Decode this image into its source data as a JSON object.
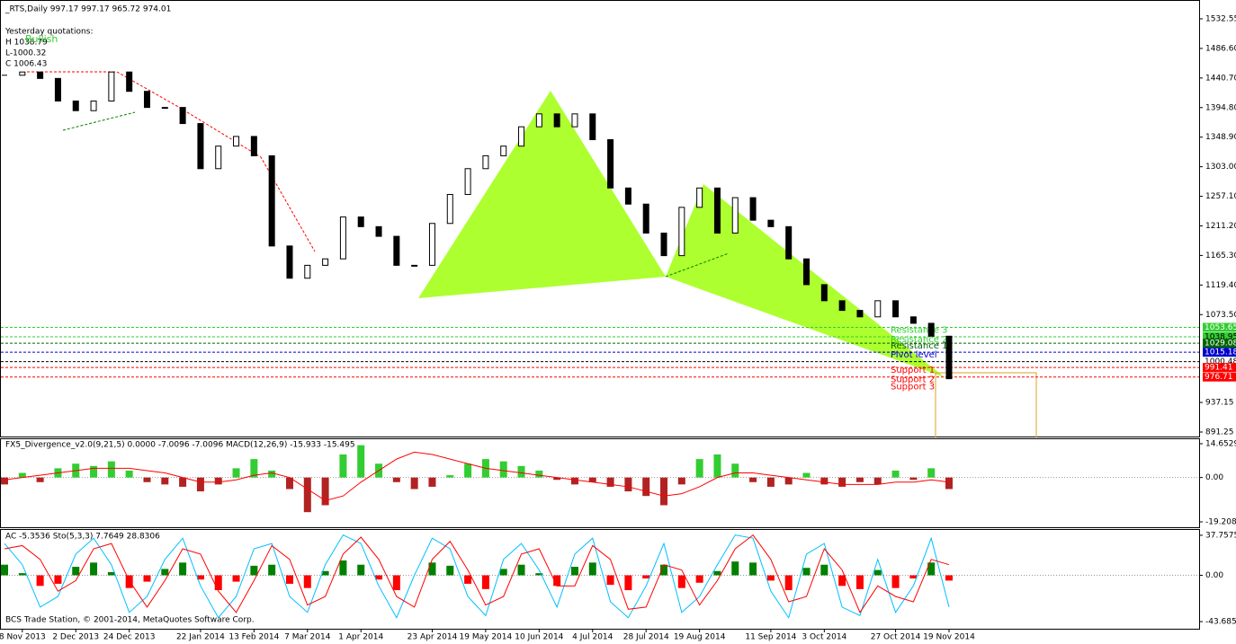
{
  "header": {
    "symbol": "_RTS,Daily  997.17 997.17 965.72 974.01",
    "lines": [
      "Yesterday quotations:",
      "H 1038.79",
      "L-1000.32",
      "C 1006.43"
    ],
    "signal": "Bullish"
  },
  "footer": "BCS Trade Station, © 2001-2014, MetaQuotes Software Corp.",
  "chart_data": [
    {
      "type": "candlestick",
      "up_color": "#ffffff",
      "down_color": "#000000",
      "categories": [
        null,
        "8 Nov 2013",
        null,
        null,
        "2 Dec 2013",
        null,
        null,
        "24 Dec 2013",
        null,
        null,
        null,
        "22 Jan 2014",
        null,
        null,
        "13 Feb 2014",
        null,
        null,
        "7 Mar 2014",
        null,
        null,
        "1 Apr 2014",
        null,
        null,
        null,
        "23 Apr 2014",
        null,
        null,
        "19 May 2014",
        null,
        null,
        "10 Jun 2014",
        null,
        null,
        "4 Jul 2014",
        null,
        null,
        "28 Jul 2014",
        null,
        null,
        "19 Aug 2014",
        null,
        null,
        null,
        "11 Sep 2014",
        null,
        null,
        "3 Oct 2014",
        null,
        null,
        null,
        "27 Oct 2014",
        null,
        null,
        "19 Nov 2014"
      ],
      "values": [
        1445,
        1450,
        1440,
        1405,
        1390,
        1405,
        1450,
        1420,
        1395,
        1395,
        1370,
        1300,
        1335,
        1350,
        1320,
        1180,
        1130,
        1150,
        1160,
        1225,
        1210,
        1195,
        1150,
        1150,
        1215,
        1260,
        1300,
        1320,
        1335,
        1365,
        1385,
        1365,
        1385,
        1345,
        1270,
        1245,
        1200,
        1165,
        1240,
        1270,
        1200,
        1255,
        1220,
        1210,
        1160,
        1120,
        1095,
        1080,
        1070,
        1095,
        1070,
        1060,
        1040,
        974.01
      ],
      "ylim": [
        884.29,
        1560.37
      ],
      "yticks": [
        1532.55,
        {
          "value": 1486.6,
          "label": "1486.60"
        },
        {
          "value": 1440.7,
          "label": "1440.70"
        },
        {
          "value": 1394.8,
          "label": "1394.80"
        },
        {
          "value": 1348.9,
          "label": "1348.90"
        },
        {
          "value": 1303,
          "label": "1303.00"
        },
        {
          "value": 1257.1,
          "label": "1257.10"
        },
        {
          "value": 1211.2,
          "label": "1211.20"
        },
        {
          "value": 1165.3,
          "label": "1165.30"
        },
        {
          "value": 1119.4,
          "label": "1119.40"
        },
        {
          "value": 1073.5,
          "label": "1073.50"
        },
        937.15,
        891.25
      ],
      "levels": [
        {
          "value": 1053.65,
          "color": "#32cd32",
          "text_color": "#ffffff"
        },
        {
          "value": 1038.95,
          "color": "#32cd32",
          "text_color": "#000000"
        },
        {
          "value": 1029.08,
          "color": "#006400",
          "text_color": "#ffffff"
        },
        {
          "value": 1015.18,
          "color": "#0000cd",
          "text_color": "#ffffff"
        },
        {
          "value": 1000.48,
          "color": "#ffffff",
          "text_color": "#000000"
        },
        {
          "value": 991.41,
          "color": "#ff0000",
          "text_color": "#ffffff"
        },
        {
          "value": 976.71,
          "color": "#ff0000",
          "text_color": "#ffffff"
        }
      ],
      "level_names": [
        {
          "text": "Resistance 3",
          "value": 1053.65,
          "color": "#32cd32"
        },
        {
          "text": "Resistance 2",
          "value": 1038.95,
          "color": "#32cd32"
        },
        {
          "text": "Resistance 1",
          "value": 1029.08,
          "color": "#006400"
        },
        {
          "text": "Pivot level",
          "value": 1015.18,
          "color": "#0000cd"
        },
        {
          "text": "Support 1",
          "value": 991.41,
          "color": "#ff0000"
        },
        {
          "text": "Support 2",
          "value": 976.71,
          "color": "#ff0000"
        },
        {
          "text": "Support 3",
          "value": 966,
          "color": "#ff0000"
        }
      ]
    },
    {
      "type": "macd",
      "title": "FX5_Divergence_v2.0(9,21,5) 0.0000 -7.0096 -7.0096  MACD(12,26,9) -15.933 -15.495",
      "values": [
        -3,
        2,
        -2,
        4,
        6,
        5,
        7,
        3,
        -2,
        -3,
        -4,
        -6,
        -3,
        4,
        8,
        3,
        -5,
        -15,
        -12,
        10,
        14,
        6,
        -2,
        -5,
        -4,
        1,
        6,
        8,
        7,
        5,
        3,
        -1,
        -3,
        -2,
        -4,
        -6,
        -8,
        -12,
        -3,
        8,
        10,
        6,
        -2,
        -4,
        -3,
        2,
        -3,
        -4,
        -2,
        -3,
        3,
        -1,
        4,
        -5
      ],
      "up_color": "#32cd32",
      "down_color": "#b22222",
      "series": [
        {
          "color": "#ff0000",
          "values": [
            -1,
            0,
            1,
            2,
            3,
            4,
            4,
            4,
            3,
            2,
            0,
            -2,
            -2,
            -1,
            1,
            2,
            0,
            -5,
            -10,
            -8,
            -2,
            3,
            8,
            11,
            10,
            8,
            6,
            4,
            3,
            2,
            1,
            0,
            -1,
            -2,
            -3,
            -4,
            -6,
            -8,
            -7,
            -4,
            0,
            2,
            2,
            1,
            0,
            -1,
            -2,
            -3,
            -3,
            -3,
            -2,
            -2,
            -1,
            -2
          ]
        }
      ],
      "ylim": [
        -21.54,
        16.6
      ],
      "yticks": [
        14.6529,
        {
          "value": 0,
          "label": "0.00"
        },
        -19.2084
      ]
    },
    {
      "type": "oscillator",
      "title": "AC -5.3536  Sto(5,3,3) 7.7649 28.8306",
      "values": [
        10,
        2,
        -10,
        -8,
        8,
        12,
        3,
        -12,
        -6,
        6,
        12,
        -4,
        -14,
        -6,
        9,
        10,
        -8,
        -12,
        4,
        14,
        10,
        -4,
        -14,
        0,
        12,
        9,
        -8,
        -13,
        6,
        10,
        2,
        -10,
        8,
        12,
        -9,
        -14,
        -3,
        10,
        -12,
        -7,
        4,
        13,
        12,
        -5,
        -14,
        7,
        10,
        -10,
        -13,
        5,
        -12,
        -3,
        12,
        -5
      ],
      "up_color": "#008000",
      "down_color": "#ff0000",
      "series": [
        {
          "color": "#00bfff",
          "values": [
            30,
            10,
            -30,
            -20,
            20,
            35,
            10,
            -35,
            -20,
            15,
            35,
            -10,
            -40,
            -20,
            25,
            30,
            -20,
            -35,
            10,
            38,
            30,
            -10,
            -40,
            0,
            35,
            25,
            -20,
            -38,
            15,
            30,
            5,
            -30,
            20,
            35,
            -25,
            -40,
            -10,
            30,
            -35,
            -20,
            10,
            38,
            35,
            -15,
            -40,
            20,
            30,
            -30,
            -38,
            15,
            -35,
            -10,
            35,
            -30
          ]
        },
        {
          "color": "#ff0000",
          "values": [
            25,
            28,
            15,
            -15,
            -5,
            25,
            30,
            -5,
            -30,
            -5,
            25,
            20,
            -15,
            -35,
            -5,
            28,
            15,
            -28,
            -20,
            20,
            36,
            15,
            -20,
            -30,
            15,
            32,
            5,
            -28,
            -20,
            20,
            25,
            -10,
            -10,
            28,
            15,
            -32,
            -30,
            10,
            5,
            -28,
            -5,
            25,
            38,
            15,
            -25,
            -20,
            25,
            5,
            -35,
            -10,
            -20,
            -25,
            15,
            10
          ]
        }
      ],
      "ylim": [
        -50.4,
        42.79
      ],
      "yticks": [
        37.7575,
        {
          "value": 0,
          "label": "0.00"
        },
        -43.6854
      ]
    }
  ]
}
